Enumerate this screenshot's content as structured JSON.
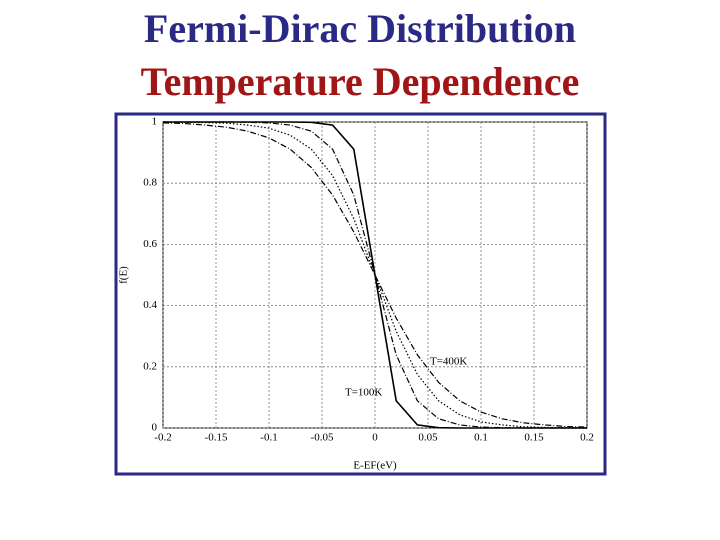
{
  "chart_data": {
    "type": "line",
    "title": "Fermi-Dirac Distribution",
    "subtitle": "Temperature Dependence",
    "x_label": "E-EF(eV)",
    "y_label": "f(E)",
    "annotations": [
      "T=400K",
      "T=100K"
    ],
    "x": [
      -0.2,
      -0.18,
      -0.16,
      -0.14,
      -0.12,
      -0.1,
      -0.08,
      -0.06,
      -0.04,
      -0.02,
      0,
      0.02,
      0.04,
      0.06,
      0.08,
      0.1,
      0.12,
      0.14,
      0.16,
      0.18,
      0.2
    ],
    "series": [
      {
        "color": "#000000",
        "style": "solid",
        "values": [
          1,
          1,
          1,
          1,
          1,
          1,
          1,
          0.999,
          0.99,
          0.911,
          0.5,
          0.089,
          0.01,
          0.001,
          0,
          0,
          0,
          0,
          0,
          0,
          0
        ]
      },
      {
        "color": "#000000",
        "style": "dashdot",
        "values": [
          1,
          1,
          1,
          1,
          0.999,
          0.997,
          0.99,
          0.97,
          0.911,
          0.761,
          0.5,
          0.239,
          0.089,
          0.03,
          0.01,
          0.003,
          0.001,
          0,
          0,
          0,
          0
        ]
      },
      {
        "color": "#000000",
        "style": "dotted",
        "values": [
          1,
          0.999,
          0.998,
          0.996,
          0.99,
          0.98,
          0.957,
          0.911,
          0.825,
          0.684,
          0.5,
          0.316,
          0.175,
          0.089,
          0.043,
          0.02,
          0.01,
          0.004,
          0.002,
          0.001,
          0
        ]
      },
      {
        "color": "#000000",
        "style": "dashdot",
        "values": [
          0.997,
          0.995,
          0.99,
          0.983,
          0.97,
          0.948,
          0.911,
          0.851,
          0.761,
          0.641,
          0.5,
          0.359,
          0.239,
          0.149,
          0.089,
          0.052,
          0.03,
          0.017,
          0.01,
          0.005,
          0.003
        ]
      }
    ],
    "xlim": [
      -0.2,
      0.2
    ],
    "xticks": [
      -0.2,
      -0.15,
      -0.1,
      -0.05,
      0,
      0.05,
      0.1,
      0.15,
      0.2
    ],
    "ylim": [
      0,
      1
    ],
    "yticks": [
      0,
      0.2,
      0.4,
      0.6,
      0.8,
      1
    ],
    "grid": true
  }
}
